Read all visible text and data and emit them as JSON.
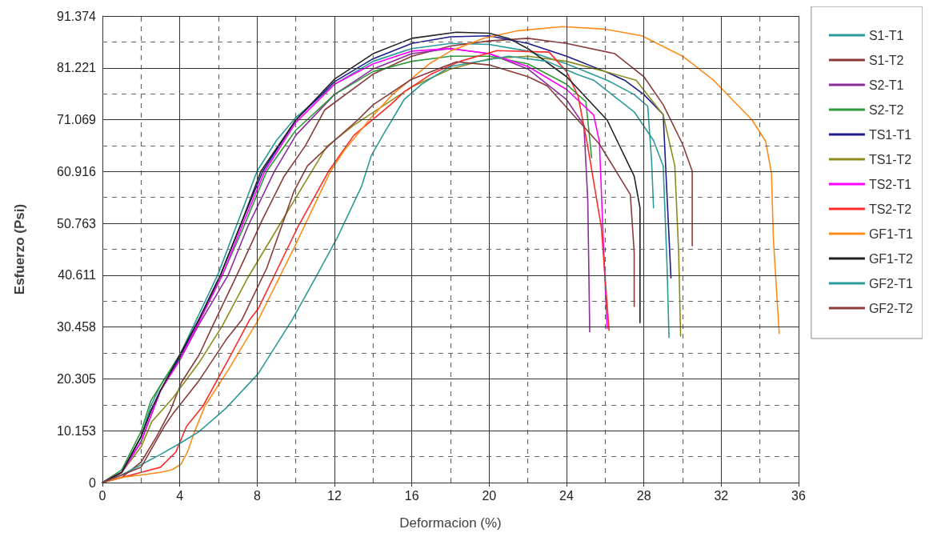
{
  "chart_data": {
    "type": "line",
    "xlabel": "Deformacion (%)",
    "ylabel": "Esfuerzo (Psi)",
    "xlim": [
      0,
      36
    ],
    "ylim": [
      0,
      91.374
    ],
    "xticks": [
      0,
      {
        "value": 2,
        "label": null
      },
      4,
      {
        "value": 6,
        "label": null
      },
      8,
      {
        "value": 10,
        "label": null
      },
      12,
      {
        "value": 14,
        "label": null
      },
      16,
      {
        "value": 18,
        "label": null
      },
      20,
      {
        "value": 22,
        "label": null
      },
      24,
      {
        "value": 26,
        "label": null
      },
      28,
      {
        "value": 30,
        "label": null
      },
      32,
      {
        "value": 34,
        "label": null
      },
      36
    ],
    "yticks": [
      0,
      {
        "value": 5.076,
        "label": null
      },
      10.153,
      {
        "value": 15.229,
        "label": null
      },
      20.305,
      {
        "value": 25.382,
        "label": null
      },
      30.458,
      {
        "value": 35.535,
        "label": null
      },
      40.611,
      {
        "value": 45.687,
        "label": null
      },
      50.763,
      {
        "value": 55.84,
        "label": null
      },
      60.916,
      {
        "value": 65.993,
        "label": null
      },
      71.069,
      {
        "value": 76.145,
        "label": null
      },
      81.221,
      {
        "value": 86.298,
        "label": null
      },
      91.374
    ],
    "grid": true,
    "legend": "right",
    "marker": "none",
    "line_style": "solid",
    "series": [
      {
        "name": "S1-T1",
        "color": "#2a9a9a",
        "x": [
          0,
          1,
          2,
          2.5,
          3,
          4,
          5,
          6,
          7,
          8,
          9,
          10,
          12,
          14,
          16,
          18,
          20,
          22,
          24,
          26.1,
          27.5,
          28.2,
          28.4,
          28.5
        ],
        "values": [
          0,
          2,
          9,
          15,
          19,
          25,
          33,
          41,
          51,
          61,
          67,
          71.5,
          78,
          82.5,
          85,
          86,
          85.8,
          84.5,
          82,
          78.8,
          76,
          73.7,
          63,
          53.8
        ]
      },
      {
        "name": "S1-T2",
        "color": "#8b3a3a",
        "x": [
          0,
          1,
          2,
          2.8,
          3.5,
          4.1,
          5,
          5.7,
          7,
          8.3,
          9.4,
          10.5,
          11.5,
          14,
          16,
          18,
          20,
          22,
          24,
          26.5,
          28,
          29,
          30,
          30.5,
          30.5
        ],
        "values": [
          0,
          1,
          4,
          9,
          14,
          19.7,
          25,
          30.7,
          41,
          51.7,
          60,
          66,
          73,
          80,
          83.5,
          85.5,
          86.5,
          87,
          86,
          84,
          79.5,
          74,
          66.3,
          61,
          46.4
        ]
      },
      {
        "name": "S2-T1",
        "color": "#8e2c9e",
        "x": [
          0,
          1,
          2,
          2.5,
          3,
          4,
          5,
          6.5,
          7.5,
          8.9,
          10,
          12,
          14,
          16,
          18,
          20,
          22,
          24,
          24.9,
          25.1,
          25.2
        ],
        "values": [
          0,
          2,
          8,
          13,
          18,
          24,
          31,
          40.6,
          50,
          61,
          68,
          76,
          81,
          84,
          85,
          84,
          81,
          75,
          70,
          55.3,
          29.5
        ]
      },
      {
        "name": "S2-T2",
        "color": "#2e9a3a",
        "x": [
          0,
          1,
          2,
          2.5,
          3,
          4,
          5,
          6.2,
          7.3,
          8.5,
          10,
          12,
          14,
          16,
          18,
          20,
          22,
          24,
          25,
          25.3
        ],
        "values": [
          0,
          2.5,
          10,
          16,
          19,
          25,
          32,
          40.6,
          50,
          61,
          69,
          76,
          80.5,
          82.5,
          83.5,
          83.5,
          82,
          78,
          74.6,
          63.6
        ]
      },
      {
        "name": "TS1-T1",
        "color": "#1c1c8c",
        "x": [
          0,
          1,
          2,
          2.5,
          3,
          4,
          5,
          6.1,
          7.2,
          8.3,
          10,
          12,
          14,
          16,
          18,
          20,
          22,
          24,
          26,
          27,
          28,
          29,
          29.2,
          29.4
        ],
        "values": [
          0,
          2,
          9,
          14,
          18,
          24.5,
          32,
          40.6,
          51,
          61,
          71,
          78.5,
          83,
          86,
          87.3,
          87.5,
          86,
          83.5,
          80.5,
          78.8,
          76,
          72.1,
          56,
          40.1
        ]
      },
      {
        "name": "TS1-T2",
        "color": "#8c8c1c",
        "x": [
          0,
          1,
          2,
          2.55,
          3.65,
          5,
          6.2,
          7.5,
          9.4,
          11.6,
          13,
          14.6,
          16,
          18,
          20,
          22,
          24,
          26,
          27.6,
          29,
          29.6,
          29.8,
          29.9
        ],
        "values": [
          0,
          2,
          7,
          11.9,
          16.6,
          23.5,
          30.7,
          40,
          52,
          65.8,
          70,
          74,
          77.5,
          81,
          83,
          83.5,
          82.5,
          80.5,
          78.8,
          72,
          62,
          45,
          28.7
        ]
      },
      {
        "name": "TS2-T1",
        "color": "#ff00ff",
        "x": [
          0,
          1,
          2,
          2.5,
          3,
          4,
          5,
          6.2,
          7.3,
          8.4,
          10,
          12,
          14,
          16,
          18,
          20,
          22,
          24,
          25.4,
          25.7,
          25.9,
          26.1
        ],
        "values": [
          0,
          2,
          8,
          13,
          18,
          24,
          31.5,
          40.6,
          51,
          61,
          70.5,
          78,
          82,
          84.5,
          85,
          84,
          81.5,
          77,
          72,
          66.8,
          47.5,
          30.2
        ]
      },
      {
        "name": "TS2-T2",
        "color": "#ff2a2a",
        "x": [
          0,
          1,
          2,
          3,
          3.8,
          4.35,
          5.2,
          6.5,
          7.6,
          8.05,
          10.1,
          11.7,
          13,
          14.9,
          15.6,
          17,
          18.5,
          20.4,
          23.1,
          24,
          24.6,
          25.1,
          25.8,
          26.2
        ],
        "values": [
          0,
          1,
          2,
          3,
          6,
          11,
          15,
          24,
          31.8,
          34,
          50,
          61,
          68,
          74,
          76.5,
          80,
          82.5,
          84.6,
          84.3,
          80.5,
          75.7,
          65.8,
          50,
          29.8
        ]
      },
      {
        "name": "GF1-T1",
        "color": "#ff8c1a",
        "x": [
          0,
          1,
          2,
          3,
          3.6,
          4.06,
          4.4,
          4.76,
          5.3,
          6.5,
          8.05,
          9.9,
          11.8,
          12.5,
          13.9,
          15,
          16.9,
          18,
          19.7,
          21.5,
          23.8,
          26,
          27.9,
          30,
          31.6,
          33.6,
          34.3,
          34.6,
          34.7,
          35
        ],
        "values": [
          0,
          1,
          1.5,
          2,
          2.5,
          3.6,
          6,
          9.9,
          15,
          22,
          31.8,
          45.9,
          61,
          65,
          71.5,
          76,
          82,
          84.5,
          87,
          88.5,
          89.3,
          88.8,
          87.5,
          83.5,
          78.8,
          71,
          66.8,
          60.5,
          47.5,
          29.2
        ]
      },
      {
        "name": "GF1-T2",
        "color": "#222222",
        "x": [
          0,
          1,
          2,
          2.5,
          3,
          4,
          5,
          6.1,
          7.2,
          8.2,
          10,
          12,
          14,
          16,
          18.3,
          20,
          21,
          22,
          24,
          26.1,
          27.5,
          27.8,
          27.8
        ],
        "values": [
          0,
          2,
          9,
          14,
          18,
          25,
          32,
          40.6,
          51,
          61,
          71,
          79,
          84,
          87,
          88.2,
          88,
          87,
          85,
          79.5,
          71,
          60,
          53.8,
          31.3
        ]
      },
      {
        "name": "GF2-T1",
        "color": "#2a9a9a",
        "x": [
          0,
          1,
          2,
          3,
          4.06,
          5,
          6.4,
          8.05,
          9.8,
          11,
          12.15,
          13.4,
          13.9,
          14.5,
          15.6,
          16.5,
          18,
          21,
          23,
          24.5,
          25.4,
          27.5,
          28.5,
          29,
          29.2,
          29.3
        ],
        "values": [
          0,
          1.5,
          3.5,
          5.5,
          7.8,
          10,
          14.6,
          21.3,
          31.8,
          40,
          48,
          58,
          64,
          68,
          75,
          78,
          81.5,
          83.5,
          82.5,
          80,
          78.8,
          72.6,
          67,
          62,
          42.3,
          28.4
        ]
      },
      {
        "name": "GF2-T2",
        "color": "#8b3a3a",
        "x": [
          0,
          1,
          2,
          3.2,
          3.65,
          5,
          6.4,
          7.2,
          8.5,
          9.9,
          10.6,
          12,
          13.2,
          14,
          16,
          18.3,
          20,
          22,
          23,
          25.7,
          27.3,
          27.5,
          27.5
        ],
        "values": [
          0,
          1.5,
          3,
          11,
          13.5,
          20,
          28,
          31.8,
          42,
          57,
          62,
          67,
          71,
          74,
          79,
          82.4,
          81.8,
          79.5,
          77.7,
          66.3,
          56.4,
          45,
          34.5
        ]
      }
    ]
  }
}
